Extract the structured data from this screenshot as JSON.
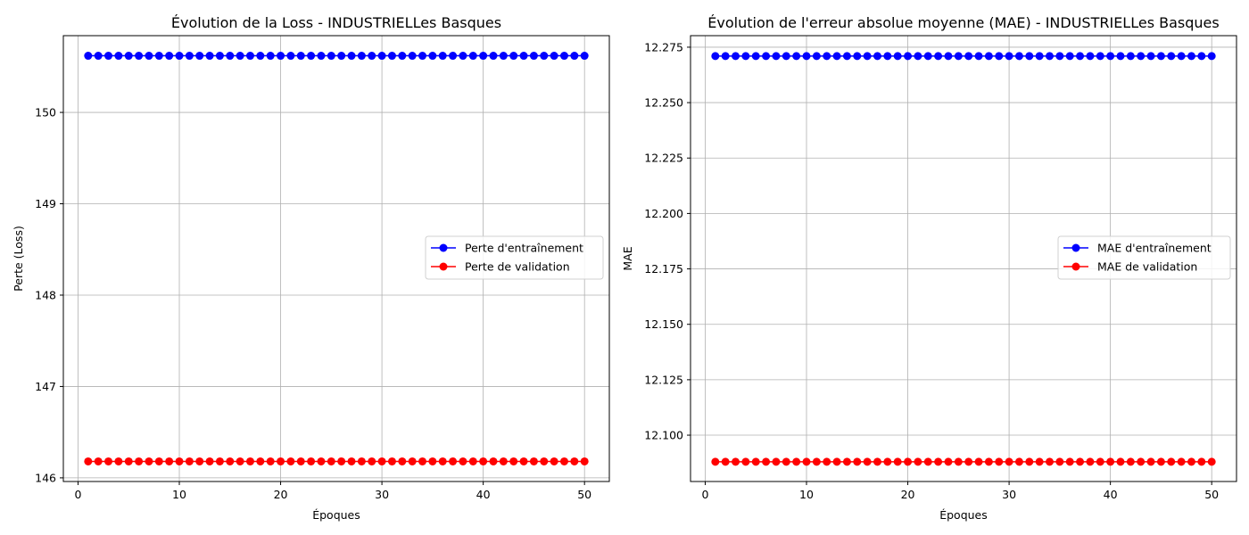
{
  "chart_data": [
    {
      "type": "line",
      "title": "Évolution de la Loss - INDUSTRIELLes Basques",
      "xlabel": "Époques",
      "ylabel": "Perte (Loss)",
      "xlim": [
        -1.45,
        52.45
      ],
      "ylim": [
        145.96,
        150.84
      ],
      "xticks": [
        0,
        10,
        20,
        30,
        40,
        50
      ],
      "yticks": [
        146,
        147,
        148,
        149,
        150
      ],
      "ytick_labels": [
        "146",
        "147",
        "148",
        "149",
        "150"
      ],
      "grid": true,
      "legend_position": "center-right",
      "series": [
        {
          "name": "Perte d'entraînement",
          "color": "#0000ff",
          "x_start": 1,
          "x_end": 50,
          "value": 150.62
        },
        {
          "name": "Perte de validation",
          "color": "#ff0000",
          "x_start": 1,
          "x_end": 50,
          "value": 146.18
        }
      ]
    },
    {
      "type": "line",
      "title": "Évolution de l'erreur absolue moyenne (MAE) - INDUSTRIELLes Basques",
      "xlabel": "Époques",
      "ylabel": "MAE",
      "xlim": [
        -1.45,
        52.45
      ],
      "ylim": [
        12.0791,
        12.2802
      ],
      "xticks": [
        0,
        10,
        20,
        30,
        40,
        50
      ],
      "yticks": [
        12.1,
        12.125,
        12.15,
        12.175,
        12.2,
        12.225,
        12.25,
        12.275
      ],
      "ytick_labels": [
        "12.100",
        "12.125",
        "12.150",
        "12.175",
        "12.200",
        "12.225",
        "12.250",
        "12.275"
      ],
      "grid": true,
      "legend_position": "center-right",
      "series": [
        {
          "name": "MAE d'entraînement",
          "color": "#0000ff",
          "x_start": 1,
          "x_end": 50,
          "value": 12.271
        },
        {
          "name": "MAE de validation",
          "color": "#ff0000",
          "x_start": 1,
          "x_end": 50,
          "value": 12.088
        }
      ]
    }
  ]
}
